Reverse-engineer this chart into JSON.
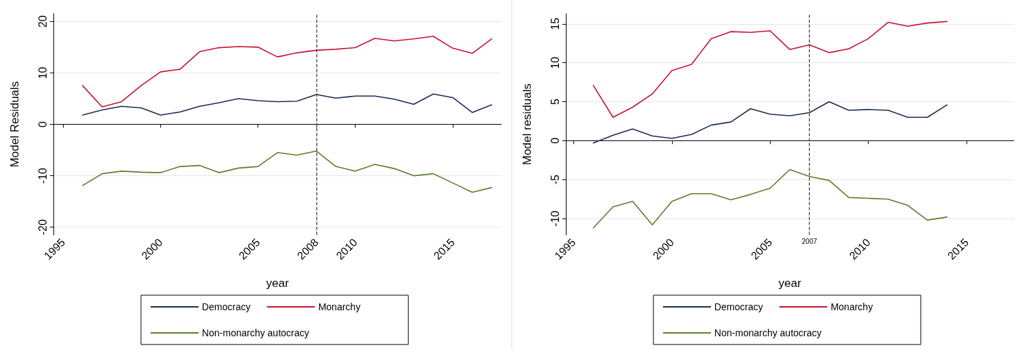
{
  "chart_data": [
    {
      "type": "line",
      "xlabel": "year",
      "ylabel": "Model Residuals",
      "x": [
        1996,
        1997,
        1998,
        1999,
        2000,
        2001,
        2002,
        2003,
        2004,
        2005,
        2006,
        2007,
        2008,
        2009,
        2010,
        2011,
        2012,
        2013,
        2014,
        2015,
        2016,
        2017
      ],
      "series": [
        {
          "name": "Democracy",
          "color": "#1a2a50",
          "values": [
            1.8,
            2.8,
            3.5,
            3.2,
            1.8,
            2.4,
            3.5,
            4.2,
            5.0,
            4.6,
            4.4,
            4.5,
            5.8,
            5.1,
            5.5,
            5.5,
            4.9,
            3.9,
            5.9,
            5.2,
            2.3,
            3.8
          ]
        },
        {
          "name": "Monarchy",
          "color": "#c8102e",
          "values": [
            7.5,
            3.4,
            4.4,
            7.5,
            10.2,
            10.7,
            14.1,
            14.9,
            15.1,
            15.0,
            13.1,
            13.9,
            14.4,
            14.6,
            14.9,
            16.7,
            16.2,
            16.6,
            17.1,
            14.8,
            13.8,
            16.6
          ]
        },
        {
          "name": "Non-monarchy autocracy",
          "color": "#5a7d2a",
          "values": [
            -11.9,
            -9.6,
            -9.1,
            -9.3,
            -9.4,
            -8.2,
            -8.0,
            -9.4,
            -8.5,
            -8.2,
            -5.5,
            -6.0,
            -5.2,
            -8.2,
            -9.1,
            -7.8,
            -8.6,
            -10.0,
            -9.6,
            -11.4,
            -13.2,
            -12.3
          ]
        }
      ],
      "xlim": [
        1994.5,
        2017.5
      ],
      "xticks": [
        1995,
        2000,
        2005,
        2008,
        2010,
        2015
      ],
      "ylim": [
        -21.5,
        21.5
      ],
      "yticks": [
        -20,
        -10,
        0,
        10,
        20
      ],
      "ref_lines": [
        {
          "axis": "x",
          "value": 2008,
          "color": "#333333",
          "line_style": "dashed"
        }
      ],
      "grid": "y",
      "legend": "bottom",
      "marker": "none",
      "line_style": "solid"
    },
    {
      "type": "line",
      "xlabel": "year",
      "ylabel": "Model residuals",
      "x": [
        1996,
        1997,
        1998,
        1999,
        2000,
        2001,
        2002,
        2003,
        2004,
        2005,
        2006,
        2007,
        2008,
        2009,
        2010,
        2011,
        2012,
        2013,
        2014
      ],
      "series": [
        {
          "name": "Democracy",
          "color": "#1a2a50",
          "values": [
            -0.3,
            0.7,
            1.5,
            0.6,
            0.3,
            0.8,
            2.0,
            2.4,
            4.1,
            3.4,
            3.2,
            3.6,
            5.0,
            3.9,
            4.0,
            3.9,
            3.0,
            3.0,
            4.6
          ]
        },
        {
          "name": "Monarchy",
          "color": "#c8102e",
          "values": [
            7.1,
            3.0,
            4.3,
            6.0,
            9.0,
            9.8,
            13.1,
            14.0,
            13.9,
            14.1,
            11.7,
            12.3,
            11.3,
            11.8,
            13.1,
            15.2,
            14.7,
            15.1,
            15.3
          ]
        },
        {
          "name": "Non-monarchy autocracy",
          "color": "#5a7d2a",
          "values": [
            -11.2,
            -8.5,
            -7.8,
            -10.8,
            -7.8,
            -6.8,
            -6.8,
            -7.6,
            -6.9,
            -6.1,
            -3.7,
            -4.6,
            -5.1,
            -7.3,
            -7.4,
            -7.5,
            -8.3,
            -10.2,
            -9.8
          ]
        }
      ],
      "xlim": [
        1994.6,
        2017.4
      ],
      "xticks": [
        1995,
        2000,
        2005,
        2010,
        2015
      ],
      "ylim": [
        -12.1,
        16.3
      ],
      "yticks": [
        -10,
        -5,
        0,
        5,
        10,
        15
      ],
      "ref_lines": [
        {
          "axis": "x",
          "value": 2007,
          "label": "2007",
          "color": "#333333",
          "line_style": "dashed"
        }
      ],
      "grid": "y",
      "legend": "bottom",
      "marker": "none",
      "line_style": "solid"
    }
  ]
}
